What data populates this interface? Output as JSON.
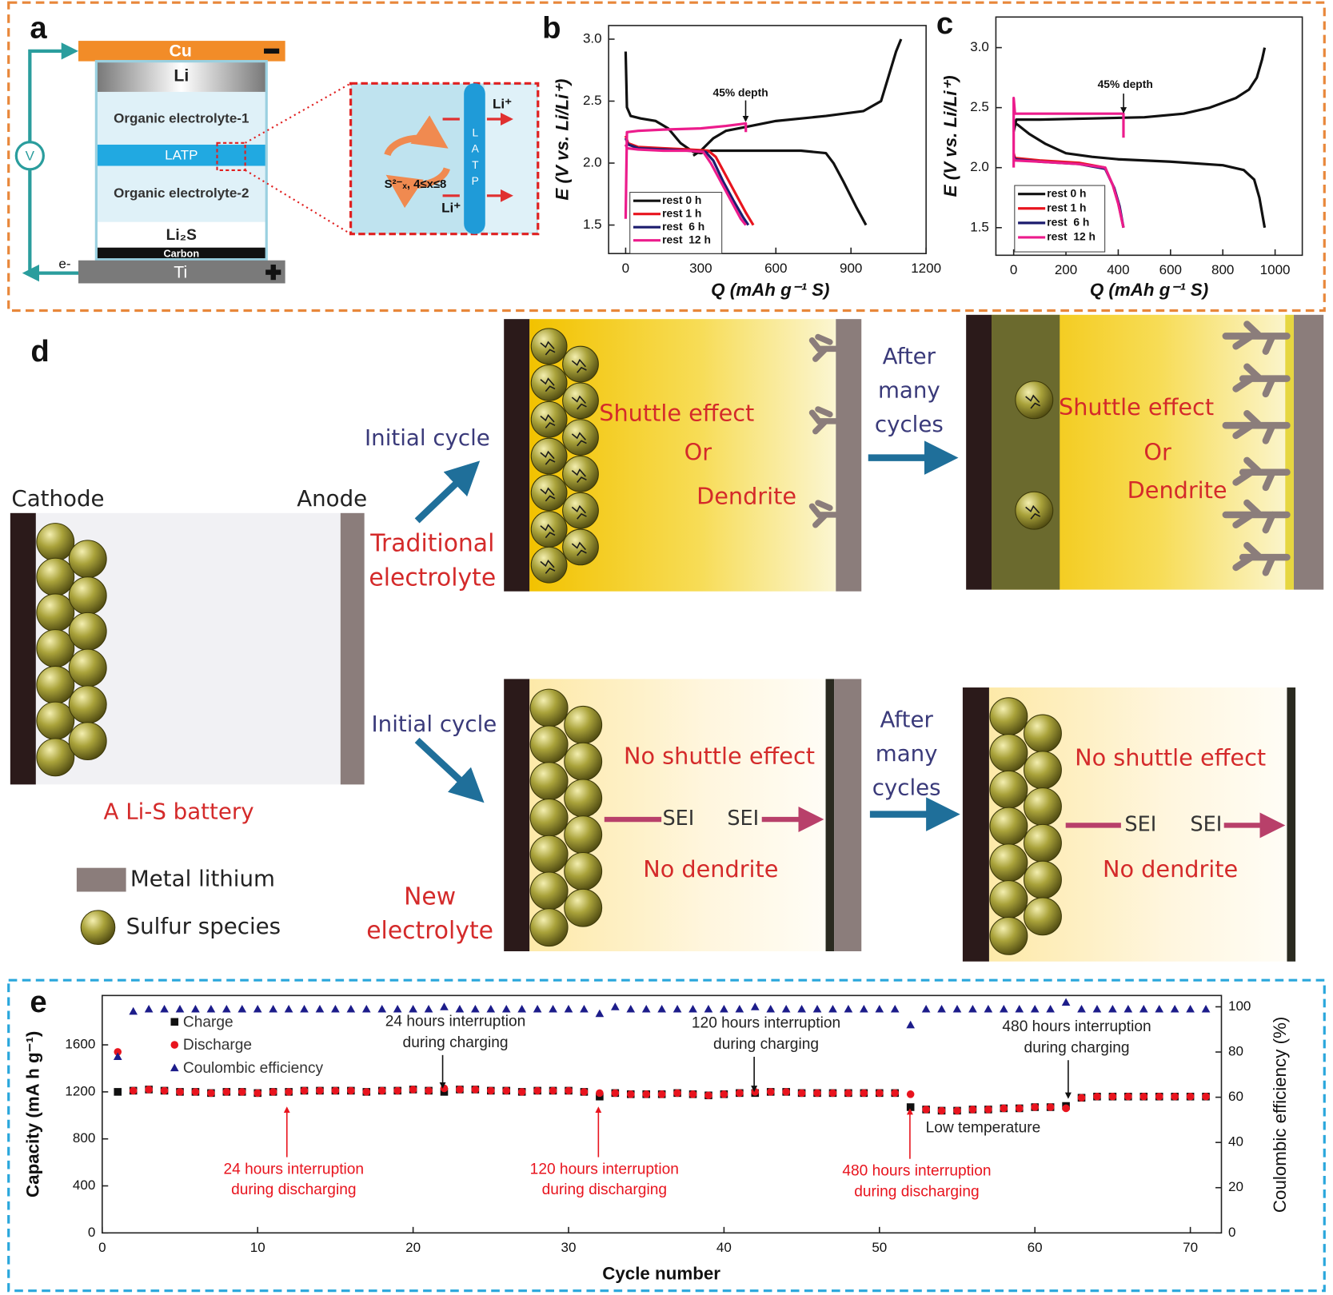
{
  "panel_labels": [
    "a",
    "b",
    "c",
    "d",
    "e"
  ],
  "panel_a": {
    "cu": "Cu",
    "li": "Li",
    "electrolyte_1": "Organic electrolyte-1",
    "latp": "LATP",
    "electrolyte_2": "Organic electrolyte-2",
    "li2s": "Li₂S",
    "carbon": "Carbon",
    "ti": "Ti",
    "voltmeter": "V",
    "electron": "e-",
    "inset": {
      "ion_out": "Li⁺",
      "ion_in": "Li⁺",
      "polysulfide": "S²⁻ₓ, 4≤x≤8",
      "membrane": "LATP"
    }
  },
  "panel_d": {
    "cathode": "Cathode",
    "anode": "Anode",
    "battery": "A Li-S battery",
    "legend": [
      "Metal lithium",
      "Sulfur species"
    ],
    "traditional": {
      "route": "Initial cycle",
      "electrolyte": [
        "Traditional",
        "electrolyte"
      ],
      "initial": [
        "Shuttle effect",
        "Or",
        "Dendrite"
      ],
      "after_label": [
        "After",
        "many",
        "cycles"
      ],
      "after": [
        "Shuttle effect",
        "Or",
        "Dendrite"
      ]
    },
    "new": {
      "route": "Initial cycle",
      "electrolyte": [
        "New",
        "electrolyte"
      ],
      "initial": {
        "shuttle": "No shuttle effect",
        "sei": [
          "SEI",
          "SEI"
        ],
        "dendrite": "No dendrite"
      },
      "after_label": [
        "After",
        "many",
        "cycles"
      ],
      "after": {
        "shuttle": "No shuttle effect",
        "sei": [
          "SEI",
          "SEI"
        ],
        "dendrite": "No dendrite"
      }
    }
  },
  "chart_data": [
    {
      "type": "line",
      "xlabel": "Q (mAh g⁻¹ S)",
      "ylabel": "E (V vs. Li/Li⁺)",
      "annotation": "45% depth",
      "xlim": [
        -68,
        1200
      ],
      "ylim": [
        1.27,
        3.11
      ],
      "xticks": [
        0,
        300,
        600,
        900,
        1200
      ],
      "yticks": [
        1.5,
        {
          "value": 2,
          "label": "2.0"
        },
        2.5,
        {
          "value": 3,
          "label": "3.0"
        }
      ],
      "series": [
        {
          "name": "rest 0 h",
          "color": "#111111",
          "x": [
            0,
            5,
            20,
            60,
            120,
            170,
            220,
            270,
            300,
            340,
            500,
            700,
            800,
            830,
            870,
            920,
            960,
            null,
            270,
            300,
            350,
            400,
            500,
            600,
            800,
            950,
            1020,
            1050,
            1080,
            1100
          ],
          "values": [
            2.9,
            2.45,
            2.38,
            2.36,
            2.34,
            2.28,
            2.16,
            2.09,
            2.08,
            2.1,
            2.1,
            2.1,
            2.08,
            2.0,
            1.85,
            1.65,
            1.5,
            null,
            2.06,
            2.1,
            2.2,
            2.26,
            2.3,
            2.34,
            2.38,
            2.42,
            2.5,
            2.7,
            2.9,
            3.0
          ]
        },
        {
          "name": "rest 1 h",
          "color": "#e8141e",
          "x": [
            0,
            10,
            50,
            150,
            250,
            330,
            360,
            400,
            440,
            480,
            510
          ],
          "values": [
            2.22,
            2.16,
            2.13,
            2.12,
            2.11,
            2.1,
            2.05,
            1.9,
            1.75,
            1.6,
            1.5
          ]
        },
        {
          "name": "rest  6 h",
          "color": "#1c1c6e",
          "x": [
            0,
            10,
            50,
            150,
            250,
            320,
            350,
            390,
            430,
            470,
            490
          ],
          "values": [
            2.2,
            2.15,
            2.12,
            2.11,
            2.1,
            2.09,
            2.02,
            1.85,
            1.7,
            1.56,
            1.5
          ]
        },
        {
          "name": "rest  12 h",
          "color": "#ec1c8c",
          "x": [
            0,
            5,
            50,
            150,
            250,
            310,
            340,
            380,
            420,
            460,
            480,
            null,
            0,
            5,
            50,
            150,
            300,
            400,
            480,
            480
          ],
          "values": [
            2.15,
            2.12,
            2.11,
            2.1,
            2.1,
            2.09,
            2.0,
            1.85,
            1.7,
            1.55,
            1.5,
            null,
            1.55,
            2.25,
            2.26,
            2.27,
            2.28,
            2.3,
            2.32,
            2.25
          ]
        }
      ]
    },
    {
      "type": "line",
      "xlabel": "Q (mAh g⁻¹ S)",
      "ylabel": "E (V vs. Li/Li⁺)",
      "annotation": "45% depth",
      "xlim": [
        -68,
        1104
      ],
      "ylim": [
        1.27,
        3.255
      ],
      "xticks": [
        0,
        200,
        400,
        600,
        800,
        1000
      ],
      "yticks": [
        1.5,
        {
          "value": 2,
          "label": "2.0"
        },
        2.5,
        {
          "value": 3,
          "label": "3.0"
        }
      ],
      "series": [
        {
          "name": "rest 0 h",
          "color": "#111111",
          "x": [
            0,
            20,
            60,
            120,
            200,
            300,
            400,
            600,
            800,
            880,
            920,
            940,
            960,
            null,
            0,
            10,
            100,
            300,
            500,
            650,
            750,
            850,
            900,
            930,
            950,
            960
          ],
          "values": [
            2.38,
            2.35,
            2.28,
            2.2,
            2.12,
            2.09,
            2.07,
            2.05,
            2.02,
            1.98,
            1.9,
            1.75,
            1.5,
            null,
            2.3,
            2.4,
            2.4,
            2.41,
            2.42,
            2.45,
            2.5,
            2.58,
            2.65,
            2.75,
            2.9,
            3.0
          ]
        },
        {
          "name": "rest 1 h",
          "color": "#e8141e",
          "x": [
            0,
            5,
            100,
            250,
            350,
            380,
            400,
            420
          ],
          "values": [
            2.12,
            2.08,
            2.06,
            2.04,
            2.0,
            1.85,
            1.7,
            1.5
          ]
        },
        {
          "name": "rest  6 h",
          "color": "#1c1c6e",
          "x": [
            0,
            5,
            100,
            250,
            350,
            385,
            405,
            420
          ],
          "values": [
            2.1,
            2.07,
            2.05,
            2.03,
            1.99,
            1.83,
            1.68,
            1.5
          ]
        },
        {
          "name": "rest  12 h",
          "color": "#ec1c8c",
          "x": [
            0,
            5,
            100,
            250,
            350,
            380,
            400,
            420,
            null,
            0,
            0,
            5,
            200,
            420,
            420
          ],
          "values": [
            2.08,
            2.06,
            2.05,
            2.03,
            2.0,
            1.85,
            1.7,
            1.5,
            null,
            2.0,
            2.58,
            2.45,
            2.45,
            2.45,
            2.25
          ]
        }
      ]
    },
    {
      "type": "scatter",
      "xlabel": "Cycle number",
      "ylabel": "Capacity (mA h g⁻¹)",
      "y2label": "Coulombic efficiency (%)",
      "xlim": [
        0,
        72
      ],
      "ylim": [
        0,
        2020
      ],
      "y2lim": [
        0,
        105
      ],
      "xticks": [
        0,
        10,
        20,
        30,
        40,
        50,
        60,
        70
      ],
      "yticks": [
        0,
        400,
        800,
        1200,
        1600
      ],
      "y2ticks": [
        0,
        20,
        40,
        60,
        80,
        100
      ],
      "x": [
        1,
        2,
        3,
        4,
        5,
        6,
        7,
        8,
        9,
        10,
        11,
        12,
        13,
        14,
        15,
        16,
        17,
        18,
        19,
        20,
        21,
        22,
        23,
        24,
        25,
        26,
        27,
        28,
        29,
        30,
        31,
        32,
        33,
        34,
        35,
        36,
        37,
        38,
        39,
        40,
        41,
        42,
        43,
        44,
        45,
        46,
        47,
        48,
        49,
        50,
        51,
        52,
        53,
        54,
        55,
        56,
        57,
        58,
        59,
        60,
        61,
        62,
        63,
        64,
        65,
        66,
        67,
        68,
        69,
        70,
        71
      ],
      "series": [
        {
          "name": "Charge",
          "color": "#111111",
          "marker": "square",
          "values": [
            1200,
            1210,
            1220,
            1210,
            1200,
            1200,
            1190,
            1200,
            1200,
            1190,
            1200,
            1200,
            1210,
            1210,
            1210,
            1210,
            1200,
            1210,
            1210,
            1220,
            1210,
            1200,
            1220,
            1220,
            1210,
            1210,
            1200,
            1210,
            1210,
            1210,
            1200,
            1160,
            1190,
            1180,
            1180,
            1180,
            1190,
            1180,
            1170,
            1180,
            1190,
            1190,
            1200,
            1200,
            1190,
            1190,
            1190,
            1190,
            1190,
            1190,
            1190,
            1070,
            1050,
            1040,
            1040,
            1050,
            1050,
            1060,
            1060,
            1070,
            1070,
            1080,
            1150,
            1160,
            1160,
            1160,
            1160,
            1160,
            1160,
            1160,
            1160
          ]
        },
        {
          "name": "Discharge",
          "color": "#e8141e",
          "marker": "circle",
          "values": [
            1540,
            1210,
            1220,
            1210,
            1200,
            1200,
            1190,
            1200,
            1200,
            1190,
            1200,
            1200,
            1210,
            1210,
            1210,
            1210,
            1200,
            1210,
            1210,
            1220,
            1210,
            1230,
            1220,
            1220,
            1210,
            1210,
            1200,
            1210,
            1210,
            1210,
            1200,
            1190,
            1190,
            1180,
            1180,
            1180,
            1190,
            1180,
            1170,
            1180,
            1190,
            1200,
            1200,
            1200,
            1190,
            1190,
            1190,
            1190,
            1190,
            1190,
            1190,
            1180,
            1050,
            1040,
            1040,
            1050,
            1050,
            1060,
            1060,
            1070,
            1070,
            1060,
            1150,
            1160,
            1160,
            1160,
            1160,
            1160,
            1160,
            1160,
            1160
          ]
        },
        {
          "name": "Coulombic efficiency",
          "color": "#1c1c8a",
          "marker": "triangle",
          "axis": "y2",
          "values": [
            78,
            98,
            99,
            99,
            99,
            99,
            99,
            99,
            99,
            99,
            99,
            99,
            99,
            99,
            99,
            99,
            99,
            99,
            99,
            99,
            99,
            100,
            99,
            99,
            99,
            99,
            99,
            99,
            99,
            99,
            99,
            97,
            100,
            99,
            99,
            99,
            99,
            99,
            99,
            99,
            99,
            100,
            99,
            99,
            99,
            99,
            99,
            99,
            99,
            99,
            99,
            92,
            99,
            99,
            99,
            99,
            99,
            99,
            99,
            99,
            99,
            102,
            99,
            99,
            99,
            99,
            99,
            99,
            99,
            99,
            99
          ]
        }
      ],
      "annotations": {
        "charging": [
          [
            "24 hours interruption",
            "during charging"
          ],
          [
            "120 hours interruption",
            "during charging"
          ],
          [
            "480 hours interruption",
            "during charging"
          ]
        ],
        "discharging": [
          [
            "24 hours interruption",
            "during discharging"
          ],
          [
            "120 hours interruption",
            "during discharging"
          ],
          [
            "480 hours interruption",
            "during discharging"
          ]
        ],
        "temperature": "Low temperature"
      }
    }
  ]
}
